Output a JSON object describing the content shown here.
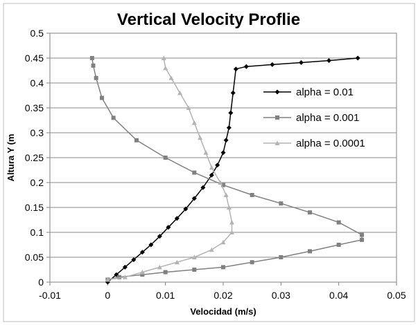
{
  "chart_data": {
    "type": "scatter",
    "title": "Vertical Velocity Proflie",
    "xlabel": "Velocidad (m/s)",
    "ylabel": "Altura Y (m",
    "xlim": [
      -0.01,
      0.05
    ],
    "ylim": [
      0,
      0.5
    ],
    "xticks": [
      "-0.01",
      "0",
      "0.01",
      "0.02",
      "0.03",
      "0.04",
      "0.05"
    ],
    "yticks": [
      "0",
      "0.05",
      "0.1",
      "0.15",
      "0.2",
      "0.25",
      "0.3",
      "0.35",
      "0.4",
      "0.45",
      "0.5"
    ],
    "grid": "horizontal",
    "legend_position": "right",
    "series": [
      {
        "name": "alpha = 0.01",
        "color": "#000000",
        "marker": "diamond",
        "x": [
          0,
          0.0015,
          0.003,
          0.0045,
          0.006,
          0.0075,
          0.009,
          0.0105,
          0.012,
          0.0135,
          0.015,
          0.0165,
          0.018,
          0.019,
          0.02,
          0.0205,
          0.021,
          0.0213,
          0.0217,
          0.0222,
          0.024,
          0.0285,
          0.0335,
          0.0383,
          0.0433
        ],
        "y": [
          0,
          0.015,
          0.03,
          0.045,
          0.06,
          0.075,
          0.092,
          0.11,
          0.128,
          0.147,
          0.168,
          0.19,
          0.215,
          0.235,
          0.26,
          0.285,
          0.31,
          0.34,
          0.38,
          0.428,
          0.433,
          0.437,
          0.441,
          0.445,
          0.45
        ]
      },
      {
        "name": "alpha = 0.001",
        "color": "#808080",
        "marker": "square",
        "x": [
          0,
          0.002,
          0.006,
          0.01,
          0.015,
          0.02,
          0.025,
          0.03,
          0.035,
          0.04,
          0.044,
          0.044,
          0.04,
          0.035,
          0.03,
          0.025,
          0.02,
          0.015,
          0.01,
          0.005,
          0.001,
          -0.001,
          -0.002,
          -0.0025,
          -0.0027
        ],
        "y": [
          0.005,
          0.01,
          0.015,
          0.02,
          0.025,
          0.03,
          0.04,
          0.05,
          0.062,
          0.075,
          0.085,
          0.095,
          0.12,
          0.14,
          0.158,
          0.175,
          0.195,
          0.22,
          0.25,
          0.285,
          0.33,
          0.37,
          0.41,
          0.435,
          0.45
        ]
      },
      {
        "name": "alpha = 0.0001",
        "color": "#b3b3b3",
        "marker": "triangle",
        "x": [
          0,
          0.003,
          0.006,
          0.009,
          0.012,
          0.015,
          0.018,
          0.02,
          0.0215,
          0.0215,
          0.021,
          0.0205,
          0.0195,
          0.018,
          0.017,
          0.016,
          0.015,
          0.014,
          0.0125,
          0.011,
          0.01,
          0.0097
        ],
        "y": [
          0.005,
          0.01,
          0.02,
          0.03,
          0.04,
          0.05,
          0.065,
          0.08,
          0.1,
          0.12,
          0.15,
          0.175,
          0.2,
          0.23,
          0.26,
          0.29,
          0.32,
          0.35,
          0.38,
          0.41,
          0.43,
          0.45
        ]
      }
    ]
  }
}
